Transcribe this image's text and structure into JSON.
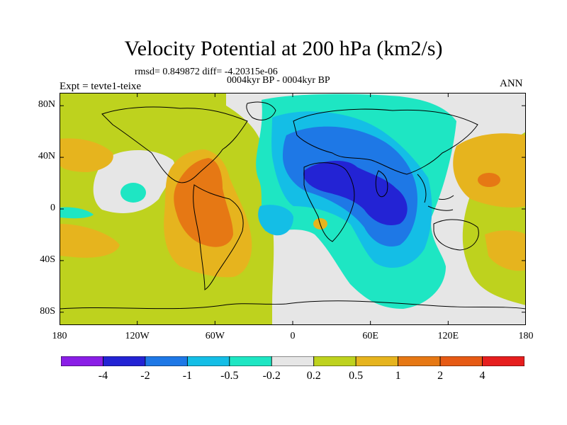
{
  "figure": {
    "title": "Velocity Potential at 200 hPa (km2/s)",
    "stats": "rmsd= 0.849872 diff= -4.20315e-06",
    "subtitle": "0004kyr BP - 0004kyr BP",
    "experiment": "Expt = tevte1-teixe",
    "season": "ANN"
  },
  "axes": {
    "x_ticks": [
      {
        "lon": -180,
        "label": "180"
      },
      {
        "lon": -120,
        "label": "120W"
      },
      {
        "lon": -60,
        "label": "60W"
      },
      {
        "lon": 0,
        "label": "0"
      },
      {
        "lon": 60,
        "label": "60E"
      },
      {
        "lon": 120,
        "label": "120E"
      },
      {
        "lon": 180,
        "label": "180"
      }
    ],
    "y_ticks": [
      {
        "lat": 80,
        "label": "80N"
      },
      {
        "lat": 40,
        "label": "40N"
      },
      {
        "lat": 0,
        "label": "0"
      },
      {
        "lat": -40,
        "label": "40S"
      },
      {
        "lat": -80,
        "label": "80S"
      }
    ],
    "lon_range": [
      -180,
      180
    ],
    "lat_range": [
      -90,
      90
    ]
  },
  "colorbar": {
    "labels": [
      "-4",
      "-2",
      "-1",
      "-0.5",
      "-0.2",
      "0.2",
      "0.5",
      "1",
      "2",
      "4"
    ],
    "colors": [
      "#8a1ee6",
      "#2323d4",
      "#1e78e6",
      "#14bee6",
      "#1ee6c3",
      "#e6e6e6",
      "#bed21e",
      "#e6b41e",
      "#e67814",
      "#e65a14",
      "#e61e1e"
    ]
  }
}
